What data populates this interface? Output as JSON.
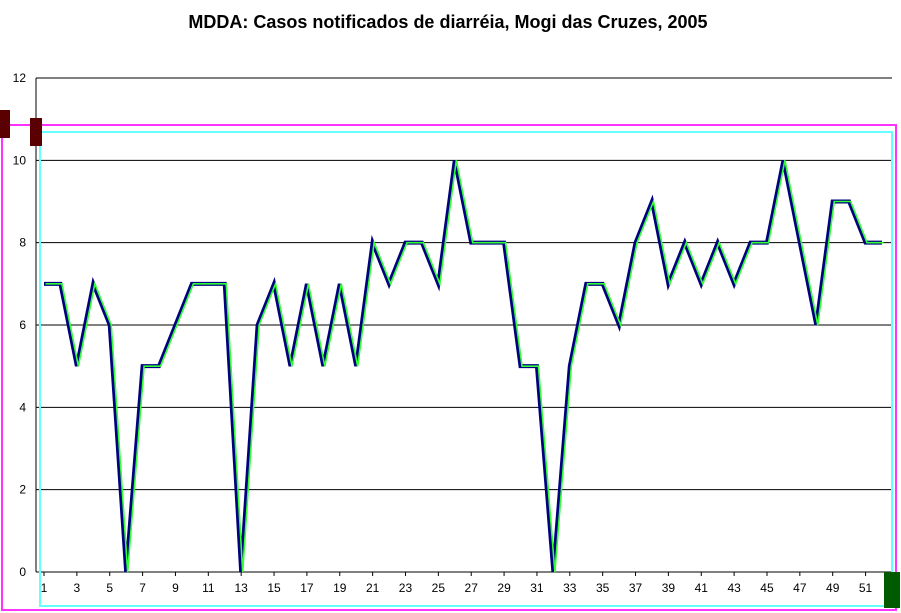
{
  "chart_data": {
    "type": "line",
    "title": "MDDA: Casos notificados de diarréia, Mogi das Cruzes, 2005",
    "xlabel": "",
    "ylabel": "",
    "ylim": [
      0,
      12
    ],
    "yticks": [
      "0",
      "2",
      "4",
      "6",
      "8",
      "10",
      "12"
    ],
    "xticks": [
      "1",
      "3",
      "5",
      "7",
      "9",
      "11",
      "13",
      "15",
      "17",
      "19",
      "21",
      "23",
      "25",
      "27",
      "29",
      "31",
      "33",
      "35",
      "37",
      "39",
      "41",
      "43",
      "45",
      "47",
      "49",
      "51"
    ],
    "grid": true,
    "x": [
      1,
      2,
      3,
      4,
      5,
      6,
      7,
      8,
      9,
      10,
      11,
      12,
      13,
      14,
      15,
      16,
      17,
      18,
      19,
      20,
      21,
      22,
      23,
      24,
      25,
      26,
      27,
      28,
      29,
      30,
      31,
      32,
      33,
      34,
      35,
      36,
      37,
      38,
      39,
      40,
      41,
      42,
      43,
      44,
      45,
      46,
      47,
      48,
      49,
      50,
      51,
      52
    ],
    "series": [
      {
        "values": [
          7,
          7,
          5,
          7,
          6,
          0,
          5,
          5,
          6,
          7,
          7,
          7,
          0,
          6,
          7,
          5,
          7,
          5,
          7,
          5,
          8,
          7,
          8,
          8,
          7,
          10,
          8,
          8,
          8,
          5,
          5,
          0,
          5,
          7,
          7,
          6,
          8,
          9,
          7,
          8,
          7,
          8,
          7,
          8,
          8,
          10,
          8,
          6,
          9,
          9,
          8,
          8
        ],
        "color": "#000080",
        "highlight_color": "#33ff33"
      }
    ]
  }
}
